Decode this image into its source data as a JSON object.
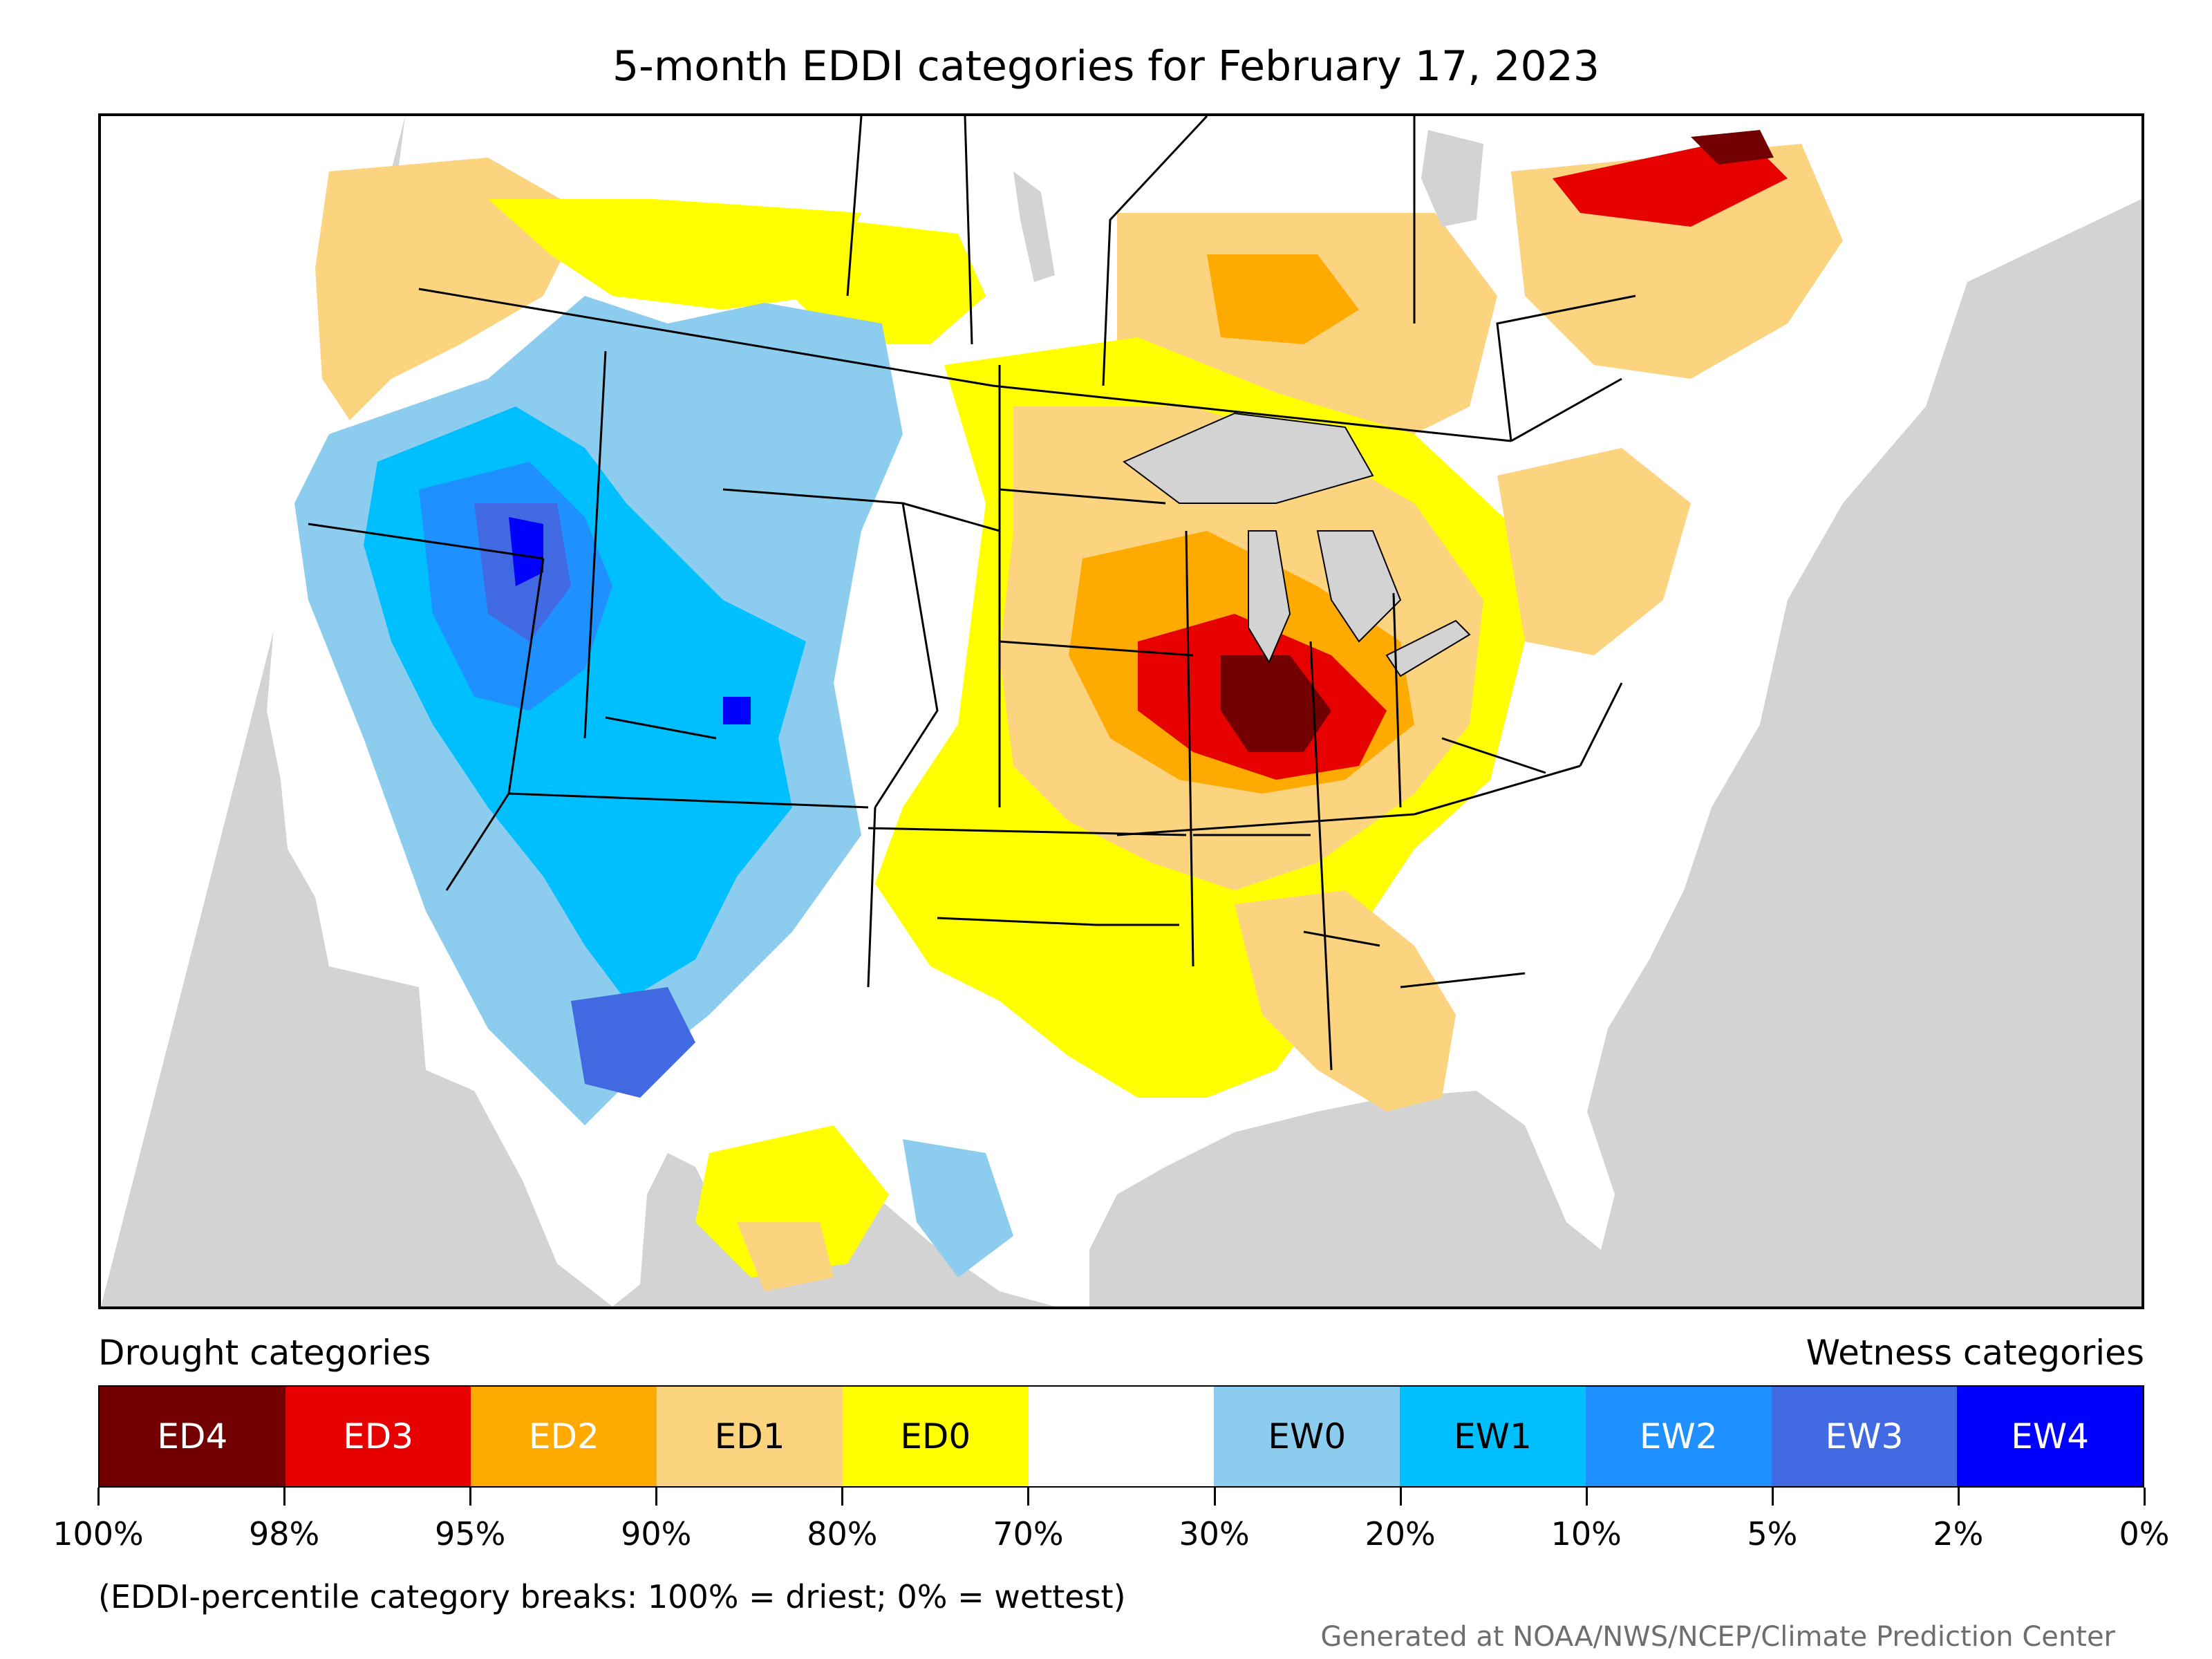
{
  "title": "5-month EDDI categories for February 17, 2023",
  "legend": {
    "drought_label": "Drought categories",
    "wetness_label": "Wetness categories",
    "categories": [
      {
        "label": "ED4",
        "color": "#730000",
        "text_color": "#ffffff"
      },
      {
        "label": "ED3",
        "color": "#e60000",
        "text_color": "#ffffff"
      },
      {
        "label": "ED2",
        "color": "#ffaa00",
        "text_color": "#ffffff"
      },
      {
        "label": "ED1",
        "color": "#fcd37f",
        "text_color": "#000000"
      },
      {
        "label": "ED0",
        "color": "#ffff00",
        "text_color": "#000000"
      },
      {
        "label": "",
        "color": "#ffffff",
        "text_color": "#000000"
      },
      {
        "label": "EW0",
        "color": "#8ccdef",
        "text_color": "#000000"
      },
      {
        "label": "EW1",
        "color": "#00bfff",
        "text_color": "#000000"
      },
      {
        "label": "EW2",
        "color": "#1e90ff",
        "text_color": "#ffffff"
      },
      {
        "label": "EW3",
        "color": "#4169e1",
        "text_color": "#ffffff"
      },
      {
        "label": "EW4",
        "color": "#0000ff",
        "text_color": "#ffffff"
      }
    ],
    "ticks": [
      "100%",
      "98%",
      "95%",
      "90%",
      "80%",
      "70%",
      "30%",
      "20%",
      "10%",
      "5%",
      "2%",
      "0%"
    ]
  },
  "note": "(EDDI-percentile category breaks: 100% = driest; 0% = wettest)",
  "credit": "Generated at NOAA/NWS/NCEP/Climate Prediction Center",
  "map": {
    "background_color": "#d3d3d3",
    "land_color": "#ffffff",
    "border_color": "#000000"
  }
}
